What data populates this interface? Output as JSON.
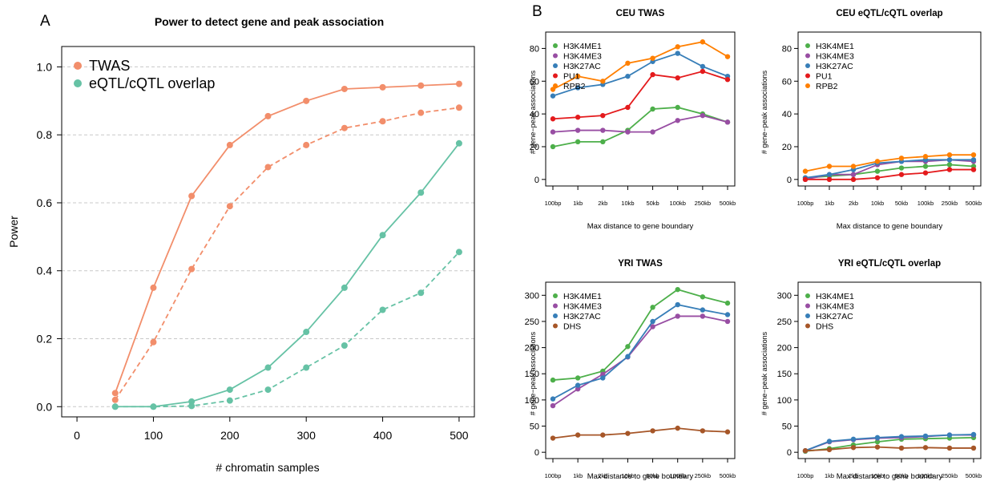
{
  "panel_labels": {
    "a": "A",
    "b": "B"
  },
  "colors": {
    "TWAS": "#f28e6b",
    "eQTL": "#66c2a5",
    "H3K4ME1": "#4daf4a",
    "H3K4ME3": "#984ea3",
    "H3K27AC": "#377eb8",
    "PU1": "#e41a1c",
    "RPB2": "#ff7f00",
    "DHS": "#a65628"
  },
  "chart_data": [
    {
      "id": "A",
      "type": "line",
      "title": "Power to detect gene and peak association",
      "xlabel": "# chromatin samples",
      "ylabel": "Power",
      "xlim": [
        -20,
        520
      ],
      "ylim": [
        -0.03,
        1.06
      ],
      "xticks": [
        0,
        100,
        200,
        300,
        400,
        500
      ],
      "yticks": [
        "0.0",
        "0.2",
        "0.4",
        "0.6",
        "0.8",
        "1.0"
      ],
      "grid": "horizontal dashed",
      "legend": "top-left",
      "legend_entries": [
        {
          "name": "TWAS",
          "color": "#f28e6b"
        },
        {
          "name": "eQTL/cQTL overlap",
          "color": "#66c2a5"
        }
      ],
      "x": [
        50,
        100,
        150,
        200,
        250,
        300,
        350,
        400,
        450,
        500
      ],
      "series": [
        {
          "name": "TWAS",
          "style": "solid",
          "color": "#f28e6b",
          "values": [
            0.04,
            0.35,
            0.62,
            0.77,
            0.855,
            0.9,
            0.935,
            0.94,
            0.945,
            0.95
          ]
        },
        {
          "name": "TWAS",
          "style": "dashed",
          "color": "#f28e6b",
          "values": [
            0.02,
            0.19,
            0.405,
            0.59,
            0.705,
            0.77,
            0.82,
            0.84,
            0.865,
            0.88
          ]
        },
        {
          "name": "eQTL/cQTL overlap",
          "style": "solid",
          "color": "#66c2a5",
          "values": [
            0.0,
            0.0,
            0.015,
            0.05,
            0.115,
            0.22,
            0.35,
            0.505,
            0.63,
            0.775
          ]
        },
        {
          "name": "eQTL/cQTL overlap",
          "style": "dashed",
          "color": "#66c2a5",
          "values": [
            0.0,
            0.0,
            0.002,
            0.018,
            0.05,
            0.115,
            0.18,
            0.285,
            0.335,
            0.455
          ]
        }
      ]
    },
    {
      "id": "B1",
      "type": "line",
      "title": "CEU TWAS",
      "xlabel": "Max distance to gene boundary",
      "ylabel": "# gene−peak associations",
      "categories": [
        "100bp",
        "1kb",
        "2kb",
        "10kb",
        "50kb",
        "100kb",
        "250kb",
        "500kb"
      ],
      "ylim": [
        -4,
        90
      ],
      "yticks": [
        "0",
        "20",
        "40",
        "60",
        "80"
      ],
      "legend": "top-left",
      "series": [
        {
          "name": "H3K4ME1",
          "color": "#4daf4a",
          "values": [
            20,
            23,
            23,
            30,
            43,
            44,
            40,
            35
          ]
        },
        {
          "name": "H3K4ME3",
          "color": "#984ea3",
          "values": [
            29,
            30,
            30,
            29,
            29,
            36,
            39,
            35
          ]
        },
        {
          "name": "H3K27AC",
          "color": "#377eb8",
          "values": [
            51,
            56,
            58,
            63,
            72,
            77,
            69,
            63
          ]
        },
        {
          "name": "PU1",
          "color": "#e41a1c",
          "values": [
            37,
            38,
            39,
            44,
            64,
            62,
            66,
            61
          ]
        },
        {
          "name": "RPB2",
          "color": "#ff7f00",
          "values": [
            55,
            63,
            60,
            71,
            74,
            81,
            84,
            75
          ]
        }
      ]
    },
    {
      "id": "B2",
      "type": "line",
      "title": "CEU eQTL/cQTL overlap",
      "xlabel": "Max distance to gene boundary",
      "ylabel": "# gene−peak associations",
      "categories": [
        "100bp",
        "1kb",
        "2kb",
        "10kb",
        "50kb",
        "100kb",
        "250kb",
        "500kb"
      ],
      "ylim": [
        -4,
        90
      ],
      "yticks": [
        "0",
        "20",
        "40",
        "60",
        "80"
      ],
      "legend": "top-left",
      "series": [
        {
          "name": "H3K4ME1",
          "color": "#4daf4a",
          "values": [
            1,
            2,
            3,
            5,
            7,
            8,
            9,
            8
          ]
        },
        {
          "name": "H3K4ME3",
          "color": "#984ea3",
          "values": [
            0,
            3,
            3,
            9,
            11,
            11,
            12,
            11
          ]
        },
        {
          "name": "H3K27AC",
          "color": "#377eb8",
          "values": [
            1,
            3,
            6,
            10,
            11,
            12,
            12,
            12
          ]
        },
        {
          "name": "PU1",
          "color": "#e41a1c",
          "values": [
            0,
            0,
            0,
            1,
            3,
            4,
            6,
            6
          ]
        },
        {
          "name": "RPB2",
          "color": "#ff7f00",
          "values": [
            5,
            8,
            8,
            11,
            13,
            14,
            15,
            15
          ]
        }
      ]
    },
    {
      "id": "B3",
      "type": "line",
      "title": "YRI TWAS",
      "xlabel": "Max distance to gene boundary",
      "ylabel": "# gene−peak associations",
      "categories": [
        "100bp",
        "1kb",
        "2kb",
        "10kb",
        "50kb",
        "100kb",
        "250kb",
        "500kb"
      ],
      "ylim": [
        -12,
        325
      ],
      "yticks": [
        "0",
        "50",
        "100",
        "150",
        "200",
        "250",
        "300"
      ],
      "legend": "top-left",
      "series": [
        {
          "name": "H3K4ME1",
          "color": "#4daf4a",
          "values": [
            138,
            142,
            155,
            202,
            277,
            311,
            297,
            285
          ]
        },
        {
          "name": "H3K4ME3",
          "color": "#984ea3",
          "values": [
            89,
            121,
            149,
            182,
            240,
            260,
            260,
            250
          ]
        },
        {
          "name": "H3K27AC",
          "color": "#377eb8",
          "values": [
            102,
            128,
            142,
            183,
            250,
            282,
            272,
            263
          ]
        },
        {
          "name": "DHS",
          "color": "#a65628",
          "values": [
            27,
            33,
            33,
            36,
            41,
            46,
            41,
            39
          ]
        }
      ]
    },
    {
      "id": "B4",
      "type": "line",
      "title": "YRI eQTL/cQTL overlap",
      "xlabel": "Max distance to gene boundary",
      "ylabel": "# gene−peak associations",
      "categories": [
        "100bp",
        "1kb",
        "2kb",
        "10kb",
        "50kb",
        "100kb",
        "250kb",
        "500kb"
      ],
      "ylim": [
        -12,
        325
      ],
      "yticks": [
        "0",
        "50",
        "100",
        "150",
        "200",
        "250",
        "300"
      ],
      "legend": "top-left",
      "series": [
        {
          "name": "H3K4ME1",
          "color": "#4daf4a",
          "values": [
            2,
            7,
            14,
            20,
            25,
            26,
            27,
            28
          ]
        },
        {
          "name": "H3K4ME3",
          "color": "#984ea3",
          "values": [
            3,
            20,
            24,
            27,
            28,
            30,
            33,
            33
          ]
        },
        {
          "name": "H3K27AC",
          "color": "#377eb8",
          "values": [
            3,
            21,
            25,
            28,
            30,
            31,
            33,
            34
          ]
        },
        {
          "name": "DHS",
          "color": "#a65628",
          "values": [
            3,
            5,
            9,
            10,
            8,
            9,
            8,
            8
          ]
        }
      ]
    }
  ]
}
